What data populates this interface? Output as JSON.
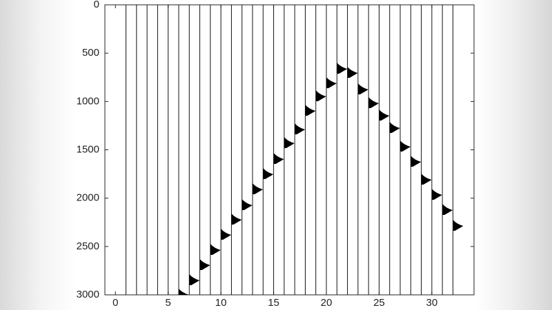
{
  "chart_data": {
    "type": "wiggle",
    "x": [
      1,
      2,
      3,
      4,
      5,
      6,
      7,
      8,
      9,
      10,
      11,
      12,
      13,
      14,
      15,
      16,
      17,
      18,
      19,
      20,
      21,
      22,
      23,
      24,
      25,
      26,
      27,
      28,
      29,
      30,
      31,
      32
    ],
    "series": [
      {
        "color": "#000000",
        "values": [
          null,
          null,
          null,
          null,
          null,
          2979,
          2829,
          2672,
          2515,
          2359,
          2202,
          2052,
          1888,
          1732,
          1575,
          1411,
          1268,
          1076,
          926,
          791,
          641,
          684,
          855,
          998,
          1126,
          1254,
          1447,
          1603,
          1789,
          1945,
          2102,
          2266
        ]
      }
    ],
    "xlim": [
      -1,
      34
    ],
    "xticks": [
      0,
      5,
      10,
      15,
      20,
      25,
      30
    ],
    "ylim": [
      3000,
      0
    ],
    "yticks": [
      0,
      500,
      1000,
      1500,
      2000,
      2500,
      3000
    ]
  }
}
